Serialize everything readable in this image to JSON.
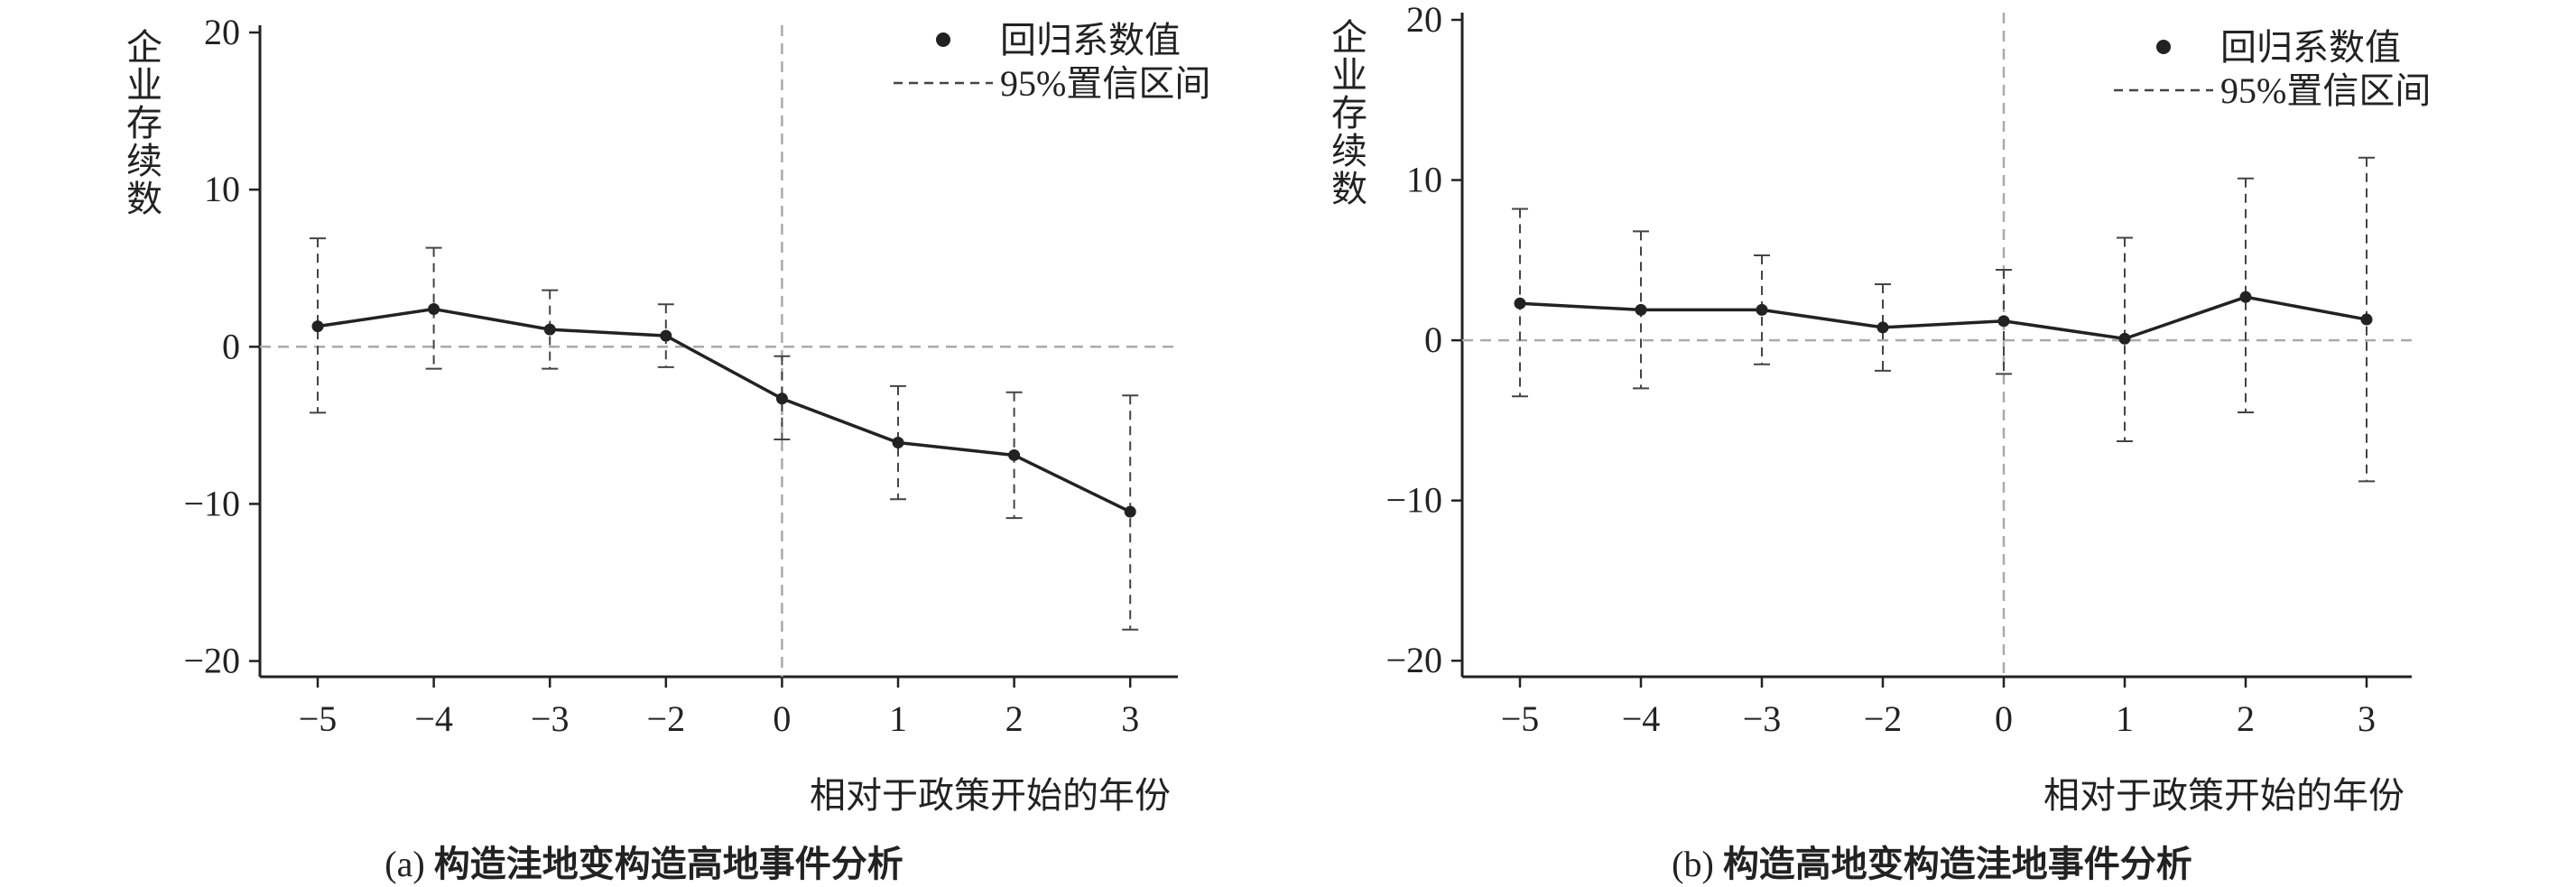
{
  "chart_data": [
    {
      "type": "line",
      "panel_label": "(a)",
      "caption": "构造洼地变构造高地事件分析",
      "ylabel": "企业存续数",
      "xlabel": "相对于政策开始的年份",
      "ylim": [
        -21,
        20
      ],
      "yticks": [
        20,
        10,
        0,
        -10,
        -20
      ],
      "categories": [
        "−5",
        "−4",
        "−3",
        "−2",
        "0",
        "1",
        "2",
        "3"
      ],
      "grid": false,
      "legend": {
        "position": "top-right",
        "point_label": "回归系数值",
        "ci_label": "95%置信区间"
      },
      "reference_lines": {
        "y": 0,
        "x_category": "0"
      },
      "series": [
        {
          "name": "回归系数值",
          "values": [
            1.3,
            2.4,
            1.1,
            0.7,
            -3.3,
            -6.1,
            -6.9,
            -10.5
          ],
          "ci_low": [
            -4.2,
            -1.4,
            -1.4,
            -1.3,
            -5.9,
            -9.7,
            -10.9,
            -18.0
          ],
          "ci_high": [
            6.9,
            6.3,
            3.6,
            2.7,
            -0.6,
            -2.5,
            -2.9,
            -3.1
          ]
        }
      ],
      "colors": {
        "line": "#222222",
        "ci": "#444444",
        "ref": "#aaaaaa"
      }
    },
    {
      "type": "line",
      "panel_label": "(b)",
      "caption": "构造高地变构造洼地事件分析",
      "ylabel": "企业存续数",
      "xlabel": "相对于政策开始的年份",
      "ylim": [
        -21,
        20
      ],
      "yticks": [
        20,
        10,
        0,
        -10,
        -20
      ],
      "categories": [
        "−5",
        "−4",
        "−3",
        "−2",
        "0",
        "1",
        "2",
        "3"
      ],
      "grid": false,
      "legend": {
        "position": "top-right",
        "point_label": "回归系数值",
        "ci_label": "95%置信区间"
      },
      "reference_lines": {
        "y": 0,
        "x_category": "0"
      },
      "series": [
        {
          "name": "回归系数值",
          "values": [
            2.3,
            1.9,
            1.9,
            0.8,
            1.2,
            0.1,
            2.7,
            1.3
          ],
          "ci_low": [
            -3.5,
            -3.0,
            -1.5,
            -1.9,
            -2.1,
            -6.3,
            -4.5,
            -8.8
          ],
          "ci_high": [
            8.2,
            6.8,
            5.3,
            3.5,
            4.4,
            6.4,
            10.1,
            11.4
          ]
        }
      ],
      "colors": {
        "line": "#222222",
        "ci": "#444444",
        "ref": "#aaaaaa"
      }
    }
  ]
}
